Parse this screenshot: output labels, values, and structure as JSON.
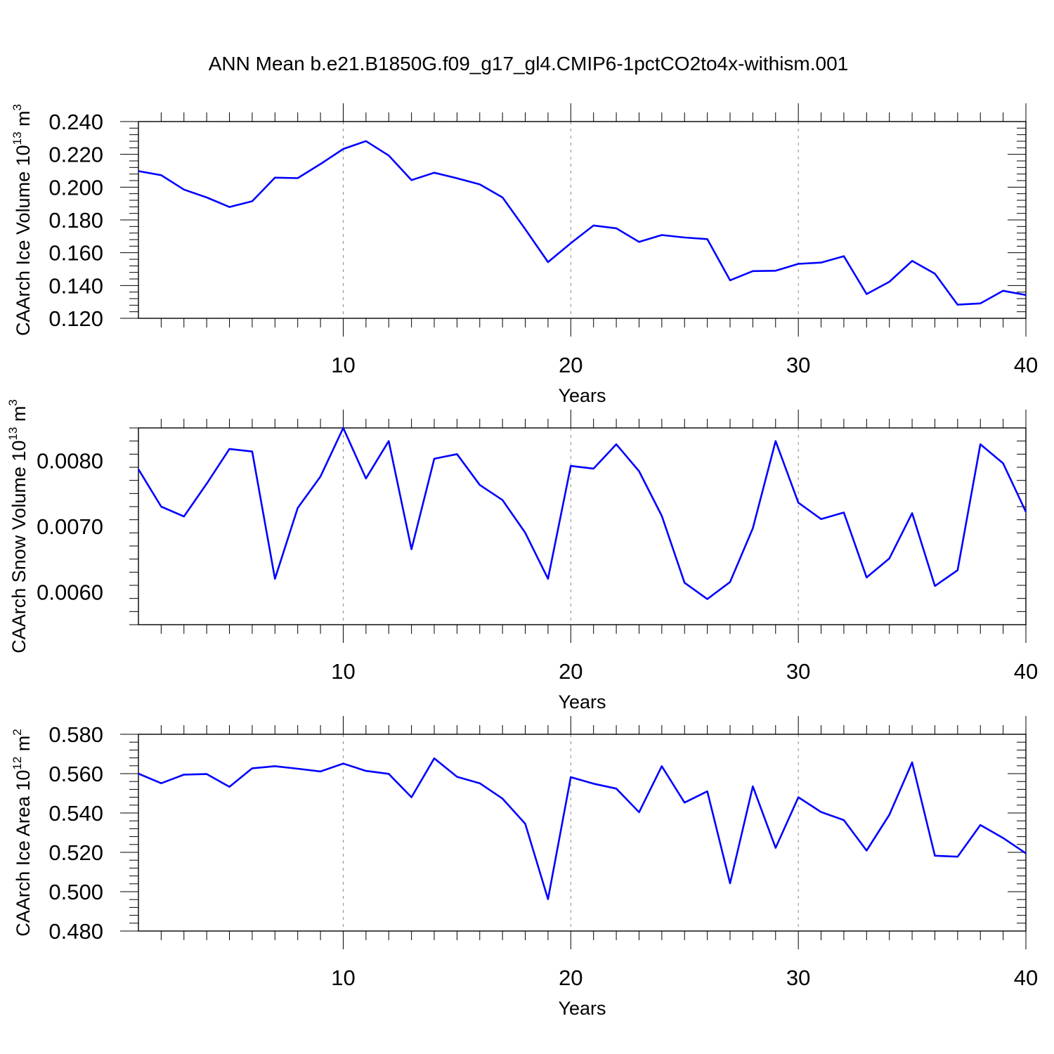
{
  "title": "ANN Mean b.e21.B1850G.f09_g17_gl4.CMIP6-1pctCO2to4x-withism.001",
  "chart_data": [
    {
      "type": "line",
      "ylabel": {
        "main": "CAArch Ice Volume 10",
        "exp": "13",
        "unit": " m",
        "unit_exp": "3"
      },
      "xlabel": "Years",
      "xlim": [
        1,
        40
      ],
      "ylim": [
        0.12,
        0.24
      ],
      "x_ticks": [
        10,
        20,
        30,
        40
      ],
      "y_ticks": [
        0.12,
        0.14,
        0.16,
        0.18,
        0.2,
        0.22,
        0.24
      ],
      "y_tick_labels": [
        "0.120",
        "0.140",
        "0.160",
        "0.180",
        "0.200",
        "0.220",
        "0.240"
      ],
      "grid": "vertical dashed at major x ticks",
      "line_color": "#0000ff",
      "x": [
        1,
        2,
        3,
        4,
        5,
        6,
        7,
        8,
        9,
        10,
        11,
        12,
        13,
        14,
        15,
        16,
        17,
        18,
        19,
        20,
        21,
        22,
        23,
        24,
        25,
        26,
        27,
        28,
        29,
        30,
        31,
        32,
        33,
        34,
        35,
        36,
        37,
        38,
        39,
        40
      ],
      "values": [
        0.2098,
        0.2073,
        0.1985,
        0.1937,
        0.1879,
        0.1914,
        0.2058,
        0.2055,
        0.2141,
        0.2233,
        0.2281,
        0.2193,
        0.2043,
        0.2088,
        0.2054,
        0.2017,
        0.1937,
        0.1744,
        0.1543,
        0.1658,
        0.1766,
        0.1749,
        0.1666,
        0.1708,
        0.1693,
        0.1683,
        0.1432,
        0.1488,
        0.149,
        0.1532,
        0.154,
        0.1579,
        0.1348,
        0.1423,
        0.155,
        0.1472,
        0.1283,
        0.1291,
        0.1368,
        0.1342
      ]
    },
    {
      "type": "line",
      "ylabel": {
        "main": "CAArch Snow Volume 10",
        "exp": "13",
        "unit": " m",
        "unit_exp": "3"
      },
      "xlabel": "Years",
      "xlim": [
        1,
        40
      ],
      "ylim": [
        0.0055,
        0.0085
      ],
      "x_ticks": [
        10,
        20,
        30,
        40
      ],
      "y_ticks": [
        0.006,
        0.007,
        0.008
      ],
      "y_tick_labels": [
        "0.0060",
        "0.0070",
        "0.0080"
      ],
      "grid": "vertical dashed at major x ticks",
      "line_color": "#0000ff",
      "x": [
        1,
        2,
        3,
        4,
        5,
        6,
        7,
        8,
        9,
        10,
        11,
        12,
        13,
        14,
        15,
        16,
        17,
        18,
        19,
        20,
        21,
        22,
        23,
        24,
        25,
        26,
        27,
        28,
        29,
        30,
        31,
        32,
        33,
        34,
        35,
        36,
        37,
        38,
        39,
        40
      ],
      "values": [
        0.00787,
        0.0073,
        0.00715,
        0.00765,
        0.00818,
        0.00814,
        0.0062,
        0.00728,
        0.00776,
        0.0085,
        0.00773,
        0.0083,
        0.00665,
        0.00803,
        0.0081,
        0.00763,
        0.0074,
        0.0069,
        0.0062,
        0.00792,
        0.00788,
        0.00825,
        0.00784,
        0.00716,
        0.00614,
        0.00589,
        0.00615,
        0.00697,
        0.0083,
        0.00736,
        0.00711,
        0.00721,
        0.00622,
        0.00651,
        0.0072,
        0.00609,
        0.00633,
        0.00825,
        0.00796,
        0.00722
      ]
    },
    {
      "type": "line",
      "ylabel": {
        "main": "CAArch Ice Area 10",
        "exp": "12",
        "unit": " m",
        "unit_exp": "2"
      },
      "xlabel": "Years",
      "xlim": [
        1,
        40
      ],
      "ylim": [
        0.48,
        0.58
      ],
      "x_ticks": [
        10,
        20,
        30,
        40
      ],
      "y_ticks": [
        0.48,
        0.5,
        0.52,
        0.54,
        0.56,
        0.58
      ],
      "y_tick_labels": [
        "0.480",
        "0.500",
        "0.520",
        "0.540",
        "0.560",
        "0.580"
      ],
      "grid": "vertical dashed at major x ticks",
      "line_color": "#0000ff",
      "x": [
        1,
        2,
        3,
        4,
        5,
        6,
        7,
        8,
        9,
        10,
        11,
        12,
        13,
        14,
        15,
        16,
        17,
        18,
        19,
        20,
        21,
        22,
        23,
        24,
        25,
        26,
        27,
        28,
        29,
        30,
        31,
        32,
        33,
        34,
        35,
        36,
        37,
        38,
        39,
        40
      ],
      "values": [
        0.56,
        0.5551,
        0.5595,
        0.5598,
        0.5533,
        0.5627,
        0.5638,
        0.5625,
        0.5611,
        0.5651,
        0.5614,
        0.5599,
        0.548,
        0.5678,
        0.5584,
        0.5551,
        0.5473,
        0.5345,
        0.4962,
        0.5582,
        0.5549,
        0.5524,
        0.5404,
        0.5638,
        0.5453,
        0.551,
        0.5043,
        0.5535,
        0.5223,
        0.548,
        0.5405,
        0.5364,
        0.5209,
        0.5391,
        0.5657,
        0.5183,
        0.5178,
        0.5339,
        0.5273,
        0.5195
      ]
    }
  ]
}
